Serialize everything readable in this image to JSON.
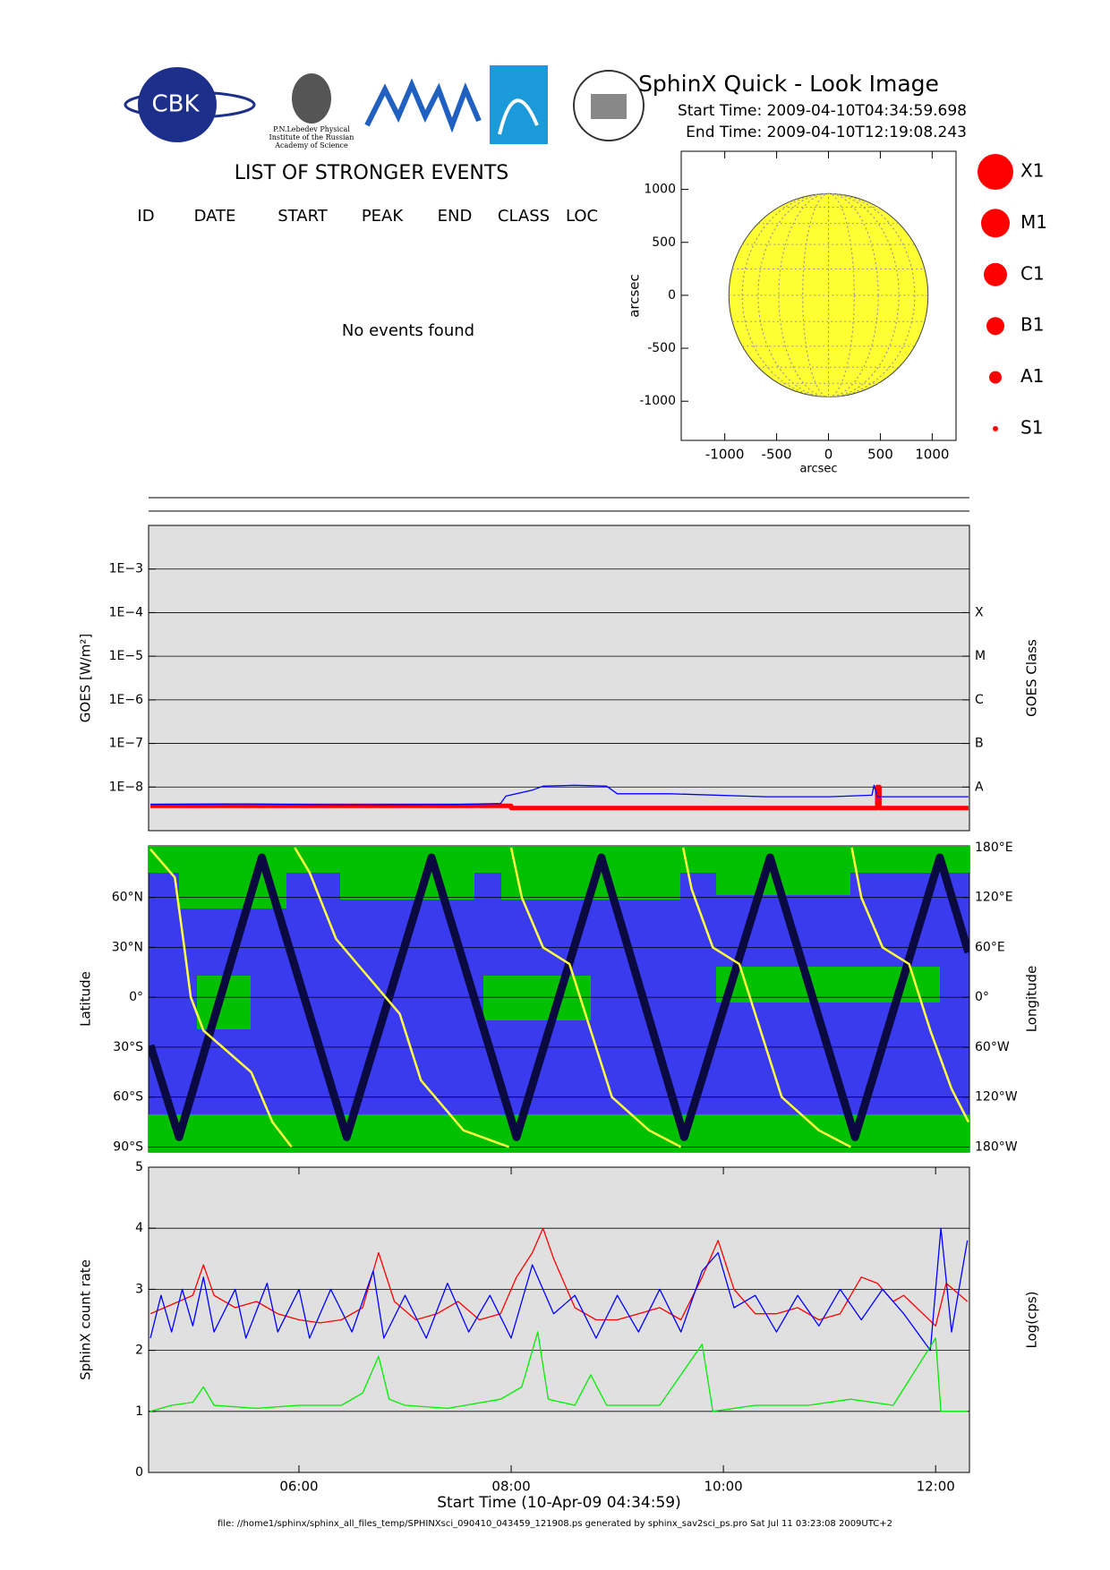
{
  "header": {
    "title": "SphinX Quick - Look Image",
    "start_time": "Start Time: 2009-04-10T04:34:59.698",
    "end_time": "End Time: 2009-04-10T12:19:08.243"
  },
  "logos": {
    "cbk": "CBK",
    "lebedev": [
      "P.N.Lebedev Physical",
      "Institute of the Russian",
      "Academy of Science"
    ]
  },
  "events": {
    "title": "LIST OF STRONGER EVENTS",
    "columns": [
      "ID",
      "DATE",
      "START",
      "PEAK",
      "END",
      "CLASS",
      "LOC"
    ],
    "message": "No events found"
  },
  "footer": "file: //home1/sphinx/sphinx_all_files_temp/SPHINXsci_090410_043459_121908.ps generated by sphinx_sav2sci_ps.pro Sat Jul 11 03:23:08 2009UTC+2",
  "chart_data": [
    {
      "type": "disk",
      "xlabel": "arcsec",
      "ylabel": "arcsec",
      "xlim": [
        -1420,
        1230
      ],
      "ylim": [
        -1370,
        1360
      ],
      "xticks": [
        -1000,
        -500,
        0,
        500,
        1000
      ],
      "yticks": [
        -1000,
        -500,
        0,
        500,
        1000
      ],
      "disk_radius": 960,
      "disk_color": "#ffff33",
      "legend": {
        "labels": [
          "X1",
          "M1",
          "C1",
          "B1",
          "A1",
          "S1"
        ],
        "color": "#ff0000"
      }
    },
    {
      "type": "line",
      "log_y": true,
      "ylabel": "GOES [W/m²]",
      "y2label": "GOES Class",
      "xlim": [
        4.583,
        12.319
      ],
      "ylim": [
        1e-09,
        0.01
      ],
      "y2lim": [
        1e-09,
        0.01
      ],
      "grid": true,
      "yticks": [
        {
          "value": 1e-08,
          "label": "1E−8"
        },
        {
          "value": 1e-07,
          "label": "1E−7"
        },
        {
          "value": 1e-06,
          "label": "1E−6"
        },
        {
          "value": 1e-05,
          "label": "1E−5"
        },
        {
          "value": 0.0001,
          "label": "1E−4"
        },
        {
          "value": 0.001,
          "label": "1E−3"
        }
      ],
      "y2ticks": [
        {
          "value": 1e-08,
          "label": "A"
        },
        {
          "value": 1e-07,
          "label": "B"
        },
        {
          "value": 1e-06,
          "label": "C"
        },
        {
          "value": 1e-05,
          "label": "M"
        },
        {
          "value": 0.0001,
          "label": "X"
        }
      ],
      "series": [
        {
          "color": "#ff0000",
          "x": [
            4.6,
            8.0,
            8.0,
            11.45,
            11.45,
            11.47,
            11.47,
            12.31
          ],
          "values": [
            3.7e-09,
            3.7e-09,
            3.3e-09,
            3.3e-09,
            1e-08,
            1e-08,
            3.3e-09,
            3.3e-09
          ]
        },
        {
          "color": "#0000ff",
          "x": [
            4.6,
            5.5,
            6.5,
            7.5,
            7.9,
            7.95,
            8.2,
            8.3,
            8.6,
            8.9,
            9.0,
            9.5,
            10.4,
            11.0,
            11.4,
            11.42,
            11.45,
            11.8,
            12.31
          ],
          "values": [
            4e-09,
            4.1e-09,
            3.9e-09,
            4e-09,
            4.2e-09,
            6.2e-09,
            8.5e-09,
            1.05e-08,
            1.1e-08,
            1.05e-08,
            7e-09,
            7e-09,
            6e-09,
            6e-09,
            6.5e-09,
            1.1e-08,
            6e-09,
            6e-09,
            6e-09
          ]
        }
      ]
    },
    {
      "type": "orbit",
      "ylabel": "Latitude",
      "y2label": "Longitude",
      "xlim": [
        4.583,
        12.319
      ],
      "ylim": [
        -93,
        91
      ],
      "y2lim": [
        -186,
        182
      ],
      "grid": true,
      "background": "#3a3aee",
      "region_color": "#00c000",
      "yticks": [
        {
          "value": -90,
          "label": "90°S"
        },
        {
          "value": -60,
          "label": "60°S"
        },
        {
          "value": -30,
          "label": "30°S"
        },
        {
          "value": 0,
          "label": "0°"
        },
        {
          "value": 30,
          "label": "30°N"
        },
        {
          "value": 60,
          "label": "60°N"
        }
      ],
      "y2ticks": [
        {
          "value": -180,
          "label": "180°W"
        },
        {
          "value": -120,
          "label": "120°W"
        },
        {
          "value": -60,
          "label": "60°W"
        },
        {
          "value": 0,
          "label": "0°"
        },
        {
          "value": 60,
          "label": "60°E"
        },
        {
          "value": 120,
          "label": "120°E"
        },
        {
          "value": 180,
          "label": "180°E"
        }
      ],
      "series": [
        {
          "color": "#0a0a40",
          "x": [
            4.6,
            4.87,
            5.65,
            6.45,
            7.25,
            8.05,
            8.85,
            9.63,
            10.44,
            11.24,
            12.04,
            12.31
          ],
          "values": [
            -29,
            -84,
            84,
            -84,
            84,
            -84,
            84,
            -84,
            84,
            -84,
            84,
            27
          ]
        },
        {
          "color": "#ffff40",
          "axis": "y2",
          "x": [
            4.6,
            4.83,
            4.92,
            4.98,
            5.1,
            5.55,
            5.75,
            5.93,
            5.95,
            5.96,
            6.1,
            6.35,
            6.55,
            6.95,
            7.15,
            7.55,
            7.98,
            7.99,
            8.0,
            8.1,
            8.3,
            8.55,
            8.75,
            8.95,
            9.3,
            9.6,
            9.61,
            9.62,
            9.7,
            9.9,
            10.15,
            10.35,
            10.55,
            10.9,
            11.2,
            11.205,
            11.21,
            11.3,
            11.5,
            11.75,
            11.95,
            12.15,
            12.31
          ],
          "values": [
            178,
            144,
            60,
            0,
            -40,
            -90,
            -150,
            -180,
            null,
            180,
            150,
            70,
            40,
            -20,
            -100,
            -160,
            -180,
            null,
            180,
            120,
            60,
            40,
            -40,
            -120,
            -160,
            -180,
            null,
            180,
            130,
            60,
            40,
            -40,
            -120,
            -160,
            -180,
            null,
            180,
            120,
            60,
            40,
            -40,
            -110,
            -150
          ]
        }
      ]
    },
    {
      "type": "line",
      "ylabel": "SphinX count rate",
      "y2label": "Log(cps)",
      "xlabel": "Start Time (10-Apr-09 04:34:59)",
      "xlim": [
        4.583,
        12.319
      ],
      "ylim": [
        0,
        5
      ],
      "grid": true,
      "yticks": [
        0,
        1,
        2,
        3,
        4,
        5
      ],
      "xticks": [
        {
          "value": 6,
          "label": "06:00"
        },
        {
          "value": 8,
          "label": "08:00"
        },
        {
          "value": 10,
          "label": "10:00"
        },
        {
          "value": 12,
          "label": "12:00"
        }
      ],
      "series": [
        {
          "color": "#ff0000",
          "x": [
            4.6,
            4.8,
            5.0,
            5.1,
            5.2,
            5.4,
            5.6,
            5.8,
            6.0,
            6.2,
            6.4,
            6.6,
            6.75,
            6.9,
            7.1,
            7.3,
            7.5,
            7.7,
            7.9,
            8.05,
            8.2,
            8.3,
            8.4,
            8.6,
            8.8,
            9.0,
            9.2,
            9.4,
            9.6,
            9.8,
            9.95,
            10.1,
            10.3,
            10.5,
            10.7,
            10.9,
            11.1,
            11.3,
            11.45,
            11.6,
            11.7,
            12.0,
            12.1,
            12.3
          ],
          "values": [
            2.6,
            2.75,
            2.9,
            3.4,
            2.9,
            2.7,
            2.8,
            2.6,
            2.5,
            2.45,
            2.5,
            2.7,
            3.6,
            2.8,
            2.5,
            2.6,
            2.8,
            2.5,
            2.6,
            3.2,
            3.6,
            4.0,
            3.5,
            2.7,
            2.5,
            2.5,
            2.6,
            2.7,
            2.5,
            3.2,
            3.8,
            3.0,
            2.6,
            2.6,
            2.7,
            2.5,
            2.6,
            3.2,
            3.1,
            2.8,
            2.9,
            2.4,
            3.1,
            2.8
          ]
        },
        {
          "color": "#0000ff",
          "x": [
            4.6,
            4.7,
            4.8,
            4.9,
            5.0,
            5.1,
            5.2,
            5.4,
            5.5,
            5.7,
            5.8,
            6.0,
            6.1,
            6.3,
            6.5,
            6.7,
            6.8,
            7.0,
            7.2,
            7.4,
            7.6,
            7.8,
            8.0,
            8.2,
            8.4,
            8.6,
            8.8,
            9.0,
            9.2,
            9.4,
            9.6,
            9.8,
            9.95,
            10.1,
            10.3,
            10.5,
            10.7,
            10.9,
            11.1,
            11.3,
            11.5,
            11.7,
            11.95,
            12.05,
            12.15,
            12.3
          ],
          "values": [
            2.2,
            2.9,
            2.3,
            3.0,
            2.4,
            3.2,
            2.3,
            3.0,
            2.2,
            3.1,
            2.3,
            3.0,
            2.2,
            3.0,
            2.3,
            3.3,
            2.2,
            2.9,
            2.2,
            3.1,
            2.3,
            2.9,
            2.2,
            3.4,
            2.6,
            2.9,
            2.2,
            2.9,
            2.3,
            3.0,
            2.3,
            3.3,
            3.6,
            2.7,
            2.9,
            2.3,
            2.9,
            2.4,
            3.0,
            2.5,
            3.0,
            2.6,
            2.0,
            4.0,
            2.3,
            3.8
          ]
        },
        {
          "color": "#00ee00",
          "x": [
            4.6,
            4.8,
            5.0,
            5.1,
            5.2,
            5.6,
            6.0,
            6.4,
            6.6,
            6.75,
            6.85,
            7.0,
            7.4,
            7.9,
            8.1,
            8.25,
            8.35,
            8.6,
            8.75,
            8.9,
            9.4,
            9.8,
            9.9,
            10.3,
            10.8,
            11.2,
            11.6,
            12.0,
            12.05,
            12.3
          ],
          "values": [
            1.0,
            1.1,
            1.15,
            1.4,
            1.1,
            1.05,
            1.1,
            1.1,
            1.3,
            1.9,
            1.2,
            1.1,
            1.05,
            1.2,
            1.4,
            2.3,
            1.2,
            1.1,
            1.6,
            1.1,
            1.1,
            2.1,
            1.0,
            1.1,
            1.1,
            1.2,
            1.1,
            2.2,
            1.0,
            1.0
          ]
        }
      ]
    }
  ]
}
